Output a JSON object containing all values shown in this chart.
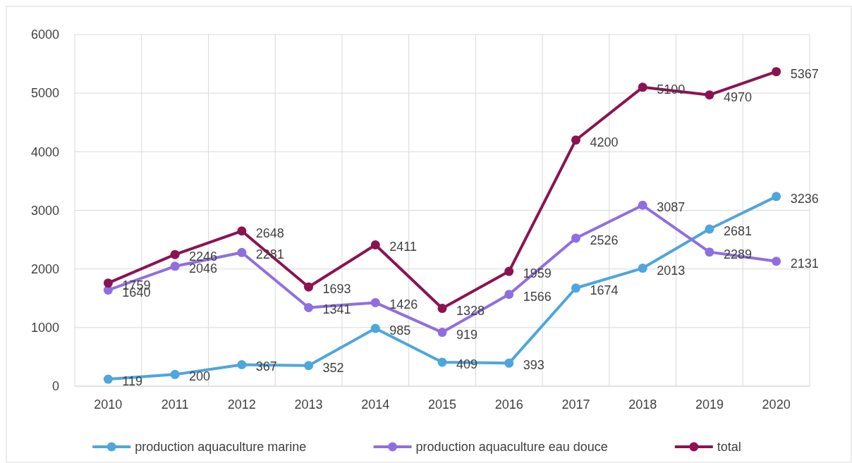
{
  "chart_data": {
    "type": "line",
    "categories": [
      "2010",
      "2011",
      "2012",
      "2013",
      "2014",
      "2015",
      "2016",
      "2017",
      "2018",
      "2019",
      "2020"
    ],
    "series": [
      {
        "name": "production aquaculture marine",
        "color": "#4ea6dc",
        "values": [
          119,
          200,
          367,
          352,
          985,
          409,
          393,
          1674,
          2013,
          2681,
          3236
        ]
      },
      {
        "name": "production aquaculture eau douce",
        "color": "#8f6fe0",
        "values": [
          1640,
          2046,
          2281,
          1341,
          1426,
          919,
          1566,
          2526,
          3087,
          2289,
          2131
        ]
      },
      {
        "name": "total",
        "color": "#8b1352",
        "values": [
          1759,
          2246,
          2648,
          1693,
          2411,
          1328,
          1959,
          4200,
          5100,
          4970,
          5367
        ]
      }
    ],
    "ylim": [
      0,
      6000
    ],
    "yticks": [
      0,
      1000,
      2000,
      3000,
      4000,
      5000,
      6000
    ],
    "grid": true,
    "legend": "bottom",
    "marker": "circle",
    "line_style": "solid",
    "data_labels": true
  }
}
